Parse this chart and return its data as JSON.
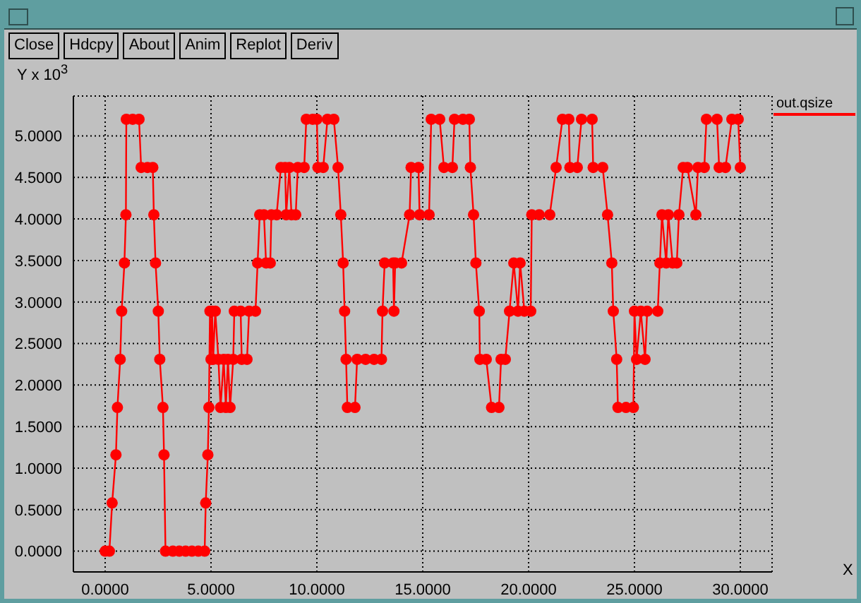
{
  "chart_data": {
    "type": "line",
    "ylabel": "Y x 10$^{3}$",
    "xlabel": "X",
    "annotations": [
      "Close",
      "Hdcpy",
      "About",
      "Anim",
      "Replot",
      "Deriv"
    ],
    "x": [
      0,
      0.2,
      0.33,
      0.51,
      0.58,
      0.71,
      0.78,
      0.91,
      0.98,
      1.0,
      1.3,
      1.6,
      1.7,
      2.0,
      2.25,
      2.3,
      2.38,
      2.51,
      2.58,
      2.73,
      2.78,
      2.85,
      3.2,
      3.5,
      3.8,
      4.1,
      4.4,
      4.7,
      4.75,
      4.85,
      4.9,
      4.95,
      5.0,
      5.05,
      5.1,
      5.2,
      5.35,
      5.45,
      5.6,
      5.7,
      5.8,
      5.9,
      6.05,
      6.1,
      6.4,
      6.45,
      6.7,
      6.8,
      7.1,
      7.2,
      7.3,
      7.5,
      7.6,
      7.8,
      7.85,
      8.1,
      8.3,
      8.5,
      8.55,
      8.7,
      8.8,
      9.0,
      9.1,
      9.4,
      9.5,
      9.8,
      10.0,
      10.05,
      10.3,
      10.5,
      10.8,
      11.0,
      11.13,
      11.24,
      11.31,
      11.38,
      11.44,
      11.8,
      11.9,
      12.3,
      12.7,
      13.05,
      13.1,
      13.2,
      13.6,
      13.64,
      13.7,
      14.0,
      14.38,
      14.45,
      14.8,
      14.85,
      15.3,
      15.4,
      15.8,
      16.0,
      16.4,
      16.5,
      16.9,
      17.2,
      17.25,
      17.4,
      17.51,
      17.67,
      17.7,
      18.0,
      18.25,
      18.6,
      18.7,
      18.9,
      19.1,
      19.3,
      19.5,
      19.6,
      19.8,
      20.1,
      20.15,
      20.5,
      21.0,
      21.3,
      21.6,
      21.9,
      21.95,
      22.3,
      22.5,
      23.0,
      23.05,
      23.5,
      23.73,
      23.93,
      24.0,
      24.16,
      24.22,
      24.6,
      24.95,
      25.0,
      25.1,
      25.3,
      25.5,
      25.6,
      26.1,
      26.2,
      26.3,
      26.5,
      26.6,
      26.8,
      27.0,
      27.1,
      27.3,
      27.5,
      27.9,
      28.0,
      28.3,
      28.4,
      28.9,
      29.0,
      29.3,
      29.6,
      29.9,
      30.0
    ],
    "series": [
      {
        "name": "out.qsize",
        "color": "#ff0000",
        "values": [
          0,
          0,
          0.58,
          1.16,
          1.73,
          2.31,
          2.89,
          3.47,
          4.05,
          5.2,
          5.2,
          5.2,
          4.62,
          4.62,
          4.62,
          4.05,
          3.47,
          2.89,
          2.31,
          1.73,
          1.16,
          0,
          0,
          0,
          0,
          0,
          0,
          0,
          0.58,
          1.16,
          1.73,
          2.89,
          2.31,
          2.89,
          2.31,
          2.89,
          2.31,
          1.73,
          2.31,
          1.73,
          2.31,
          1.73,
          2.31,
          2.89,
          2.89,
          2.31,
          2.31,
          2.89,
          2.89,
          3.47,
          4.05,
          4.05,
          3.47,
          3.47,
          4.05,
          4.05,
          4.62,
          4.62,
          4.05,
          4.62,
          4.05,
          4.05,
          4.62,
          4.62,
          5.2,
          5.2,
          5.2,
          4.62,
          4.62,
          5.2,
          5.2,
          4.62,
          4.05,
          3.47,
          2.89,
          2.31,
          1.73,
          1.73,
          2.31,
          2.31,
          2.31,
          2.31,
          2.89,
          3.47,
          3.47,
          2.89,
          3.47,
          3.47,
          4.05,
          4.62,
          4.62,
          4.05,
          4.05,
          5.2,
          5.2,
          4.62,
          4.62,
          5.2,
          5.2,
          5.2,
          4.62,
          4.05,
          3.47,
          2.89,
          2.31,
          2.31,
          1.73,
          1.73,
          2.31,
          2.31,
          2.89,
          3.47,
          2.89,
          3.47,
          2.89,
          2.89,
          4.05,
          4.05,
          4.05,
          4.62,
          5.2,
          5.2,
          4.62,
          4.62,
          5.2,
          5.2,
          4.62,
          4.62,
          4.05,
          3.47,
          2.89,
          2.31,
          1.73,
          1.73,
          1.73,
          2.89,
          2.31,
          2.89,
          2.31,
          2.89,
          2.89,
          3.47,
          4.05,
          3.47,
          4.05,
          3.47,
          3.47,
          4.05,
          4.62,
          4.62,
          4.05,
          4.62,
          4.62,
          5.2,
          5.2,
          4.62,
          4.62,
          5.2,
          5.2,
          4.62
        ]
      }
    ],
    "xlim": [
      -1.5,
      31.5
    ],
    "ylim": [
      -0.25,
      5.48
    ],
    "xticks": [
      {
        "value": 0,
        "label": "0.0000"
      },
      {
        "value": 5,
        "label": "5.0000"
      },
      {
        "value": 10,
        "label": "10.0000"
      },
      {
        "value": 15,
        "label": "15.0000"
      },
      {
        "value": 20,
        "label": "20.0000"
      },
      {
        "value": 25,
        "label": "25.0000"
      },
      {
        "value": 30,
        "label": "30.0000"
      }
    ],
    "yticks": [
      {
        "value": 0,
        "label": "0.0000"
      },
      {
        "value": 0.5,
        "label": "0.5000"
      },
      {
        "value": 1,
        "label": "1.0000"
      },
      {
        "value": 1.5,
        "label": "1.5000"
      },
      {
        "value": 2,
        "label": "2.0000"
      },
      {
        "value": 2.5,
        "label": "2.5000"
      },
      {
        "value": 3,
        "label": "3.0000"
      },
      {
        "value": 3.5,
        "label": "3.5000"
      },
      {
        "value": 4,
        "label": "4.0000"
      },
      {
        "value": 4.5,
        "label": "4.5000"
      },
      {
        "value": 5,
        "label": "5.0000"
      }
    ],
    "grid": true,
    "legend": "top right",
    "marker": "circle",
    "line_style": "solid"
  }
}
